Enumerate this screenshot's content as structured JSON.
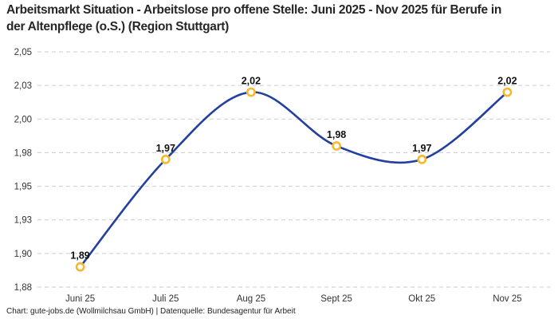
{
  "header": {
    "title": "Arbeitsmarkt Situation - Arbeitslose pro offene Stelle: Juni 2025 - Nov 2025 für Berufe in der Altenpflege (o.S.) (Region Stuttgart)"
  },
  "footer": {
    "credit": "Chart: gute-jobs.de (Wollmilchsau GmbH) | Datenquelle: Bundesagentur für Arbeit"
  },
  "chart_data": {
    "type": "line",
    "title": "Arbeitsmarkt Situation - Arbeitslose pro offene Stelle: Juni 2025 - Nov 2025 für Berufe in der Altenpflege (o.S.) (Region Stuttgart)",
    "categories": [
      "Juni 25",
      "Juli 25",
      "Aug 25",
      "Sept 25",
      "Okt 25",
      "Nov 25"
    ],
    "values": [
      1.89,
      1.97,
      2.02,
      1.98,
      1.97,
      2.02
    ],
    "value_labels": [
      "1,89",
      "1,97",
      "2,02",
      "1,98",
      "1,97",
      "2,02"
    ],
    "ylim": [
      1.875,
      2.05
    ],
    "yticks": [
      {
        "value": 1.875,
        "label": "1,88"
      },
      {
        "value": 1.9,
        "label": "1,90"
      },
      {
        "value": 1.925,
        "label": "1,93"
      },
      {
        "value": 1.95,
        "label": "1,95"
      },
      {
        "value": 1.975,
        "label": "1,98"
      },
      {
        "value": 2.0,
        "label": "2,00"
      },
      {
        "value": 2.025,
        "label": "2,03"
      },
      {
        "value": 2.05,
        "label": "2,05"
      }
    ],
    "xlabel": "",
    "ylabel": "",
    "grid": "horizontal-dashed",
    "legend": "none",
    "smooth": true,
    "colors": {
      "line": "#23409e",
      "marker_ring": "#f7b92a",
      "marker_fill": "#ffffff",
      "grid": "#cccccc",
      "axis_text": "#333333",
      "data_label": "#111111"
    }
  }
}
